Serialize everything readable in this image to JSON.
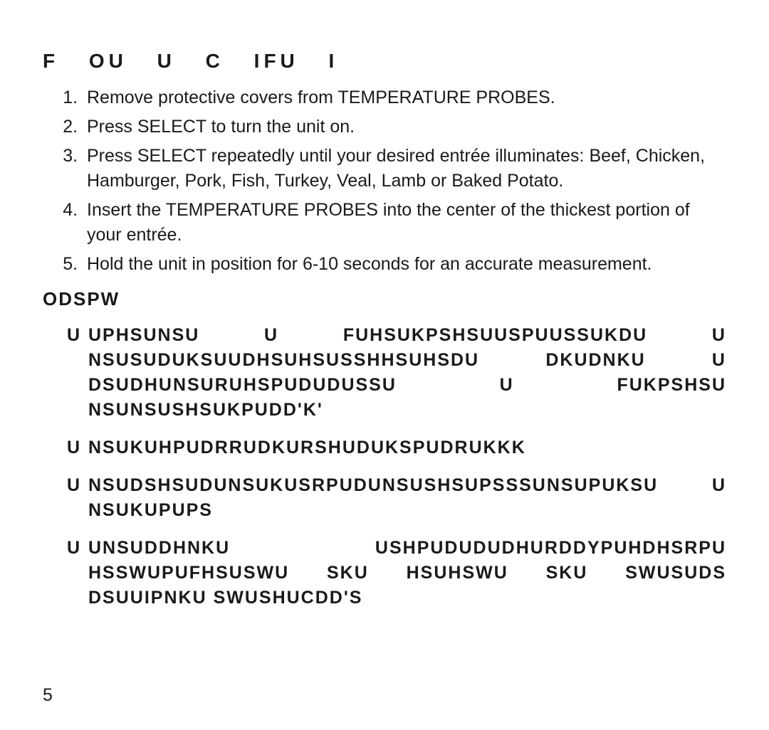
{
  "heading": "F OU U C IFU I",
  "steps": [
    "Remove protective covers from TEMPERATURE PROBES.",
    "Press SELECT to turn the unit on.",
    "Press SELECT repeatedly until your desired entrée illuminates: Beef, Chicken, Hamburger, Pork, Fish, Turkey, Veal, Lamb or Baked Potato.",
    "Insert the TEMPERATURE PROBES into the center of the thickest portion of your entrée.",
    "Hold the unit in position for 6-10 seconds for an accurate measurement."
  ],
  "notes_heading": "ODSPW",
  "notes": [
    "UPHSUNSU U FUHSUKPSHSUUSPUUSSUKDU U NSUSUDUKSUUDHSUHSUSSHHSUHSDU DKUDNKU U DSUDHUNSURUHSPUDUDUSSU U FUKPSHSU NSUNSUSHSUKPUDD'K'",
    "NSUKUHPUDRRUDKURSHUDUKSPUDRUKKK",
    "NSUDSHSUDUNSUKUSRPUDUNSUSHSUPSSSUNSUPUKSU U NSUKUPUPS",
    "UNSUDDHNKU USHPUDUDUDHURDDYPUHDHSRPU HSSWUPUFHSUSWU SKU HSUHSWU SKU SWUSUDS DSUUIPNKU SWUSHUCDD'S"
  ],
  "page_number": "5"
}
